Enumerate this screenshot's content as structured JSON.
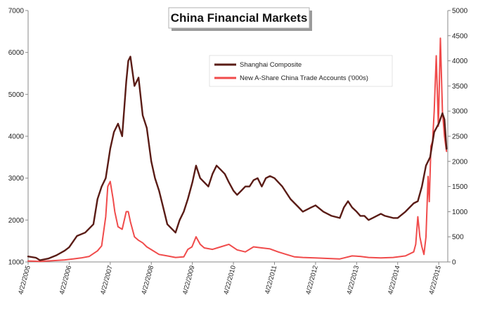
{
  "chart_data": {
    "type": "line",
    "title": "China Financial Markets",
    "xlabel": "",
    "ylabel": "",
    "x_categories": [
      "4/22/2005",
      "4/22/2006",
      "4/22/2007",
      "4/22/2008",
      "4/22/2009",
      "4/22/2010",
      "4/22/2011",
      "4/22/2012",
      "4/22/2013",
      "4/22/2014",
      "4/22/2015"
    ],
    "ylim_left": [
      1000,
      7000
    ],
    "ylim_right": [
      0,
      5000
    ],
    "y_left_ticks": [
      "1000",
      "2000",
      "3000",
      "4000",
      "5000",
      "6000",
      "7000"
    ],
    "y_right_ticks": [
      "0",
      "500",
      "1000",
      "1500",
      "2000",
      "2500",
      "3000",
      "3500",
      "4000",
      "4500",
      "5000"
    ],
    "grid": false,
    "legend_position": "top-center",
    "series": [
      {
        "name": "Shanghai Composite",
        "axis": "left",
        "color": "#5a1c16",
        "x": [
          2005.31,
          2005.5,
          2005.6,
          2005.8,
          2006.0,
          2006.2,
          2006.31,
          2006.5,
          2006.7,
          2006.9,
          2007.0,
          2007.1,
          2007.2,
          2007.31,
          2007.4,
          2007.5,
          2007.6,
          2007.7,
          2007.75,
          2007.8,
          2007.9,
          2008.0,
          2008.1,
          2008.2,
          2008.31,
          2008.4,
          2008.5,
          2008.6,
          2008.7,
          2008.8,
          2008.9,
          2009.0,
          2009.1,
          2009.2,
          2009.31,
          2009.4,
          2009.5,
          2009.6,
          2009.7,
          2009.8,
          2009.9,
          2010.0,
          2010.1,
          2010.2,
          2010.31,
          2010.4,
          2010.5,
          2010.6,
          2010.7,
          2010.8,
          2010.9,
          2011.0,
          2011.1,
          2011.2,
          2011.31,
          2011.5,
          2011.7,
          2011.9,
          2012.0,
          2012.2,
          2012.31,
          2012.5,
          2012.7,
          2012.9,
          2013.0,
          2013.1,
          2013.2,
          2013.31,
          2013.4,
          2013.5,
          2013.6,
          2013.7,
          2013.9,
          2014.0,
          2014.2,
          2014.31,
          2014.5,
          2014.7,
          2014.8,
          2014.9,
          2015.0,
          2015.1,
          2015.2,
          2015.31,
          2015.4,
          2015.45,
          2015.5
        ],
        "values": [
          1130,
          1100,
          1040,
          1080,
          1160,
          1270,
          1350,
          1620,
          1700,
          1900,
          2500,
          2800,
          3000,
          3700,
          4100,
          4300,
          4000,
          5300,
          5800,
          5900,
          5200,
          5400,
          4500,
          4200,
          3400,
          3000,
          2700,
          2300,
          1900,
          1800,
          1700,
          2000,
          2200,
          2500,
          2900,
          3300,
          3000,
          2900,
          2800,
          3100,
          3300,
          3200,
          3100,
          2900,
          2700,
          2600,
          2700,
          2800,
          2800,
          2950,
          3000,
          2800,
          3000,
          3050,
          3000,
          2800,
          2500,
          2300,
          2200,
          2300,
          2350,
          2200,
          2100,
          2050,
          2300,
          2450,
          2300,
          2200,
          2100,
          2100,
          2000,
          2050,
          2150,
          2100,
          2050,
          2050,
          2200,
          2400,
          2450,
          2800,
          3300,
          3500,
          4100,
          4300,
          4550,
          4400,
          3700
        ]
      },
      {
        "name": "New A-Share China Trade Accounts ('000s)",
        "axis": "right",
        "color": "#f04b4b",
        "x": [
          2005.31,
          2005.6,
          2005.9,
          2006.2,
          2006.4,
          2006.6,
          2006.8,
          2007.0,
          2007.1,
          2007.2,
          2007.25,
          2007.31,
          2007.38,
          2007.42,
          2007.5,
          2007.6,
          2007.7,
          2007.75,
          2007.8,
          2007.9,
          2008.0,
          2008.1,
          2008.2,
          2008.3,
          2008.5,
          2008.7,
          2008.9,
          2009.1,
          2009.2,
          2009.3,
          2009.4,
          2009.5,
          2009.6,
          2009.8,
          2010.0,
          2010.2,
          2010.4,
          2010.6,
          2010.8,
          2011.0,
          2011.2,
          2011.4,
          2011.6,
          2011.8,
          2012.0,
          2012.3,
          2012.6,
          2012.9,
          2013.0,
          2013.2,
          2013.4,
          2013.6,
          2013.9,
          2014.2,
          2014.5,
          2014.7,
          2014.75,
          2014.8,
          2014.85,
          2014.9,
          2014.95,
          2015.0,
          2015.05,
          2015.08,
          2015.12,
          2015.16,
          2015.2,
          2015.25,
          2015.3,
          2015.35,
          2015.4,
          2015.45,
          2015.5
        ],
        "values": [
          20,
          10,
          25,
          40,
          60,
          80,
          110,
          220,
          320,
          900,
          1500,
          1600,
          1250,
          1000,
          700,
          650,
          1000,
          1000,
          800,
          500,
          430,
          380,
          300,
          250,
          150,
          120,
          90,
          100,
          250,
          300,
          500,
          350,
          280,
          250,
          300,
          350,
          240,
          200,
          300,
          280,
          260,
          200,
          150,
          100,
          90,
          80,
          70,
          60,
          80,
          120,
          110,
          90,
          80,
          90,
          120,
          200,
          350,
          900,
          500,
          300,
          150,
          500,
          1700,
          1200,
          2300,
          2400,
          3000,
          4100,
          2700,
          4450,
          3000,
          2500,
          2200
        ]
      }
    ]
  }
}
